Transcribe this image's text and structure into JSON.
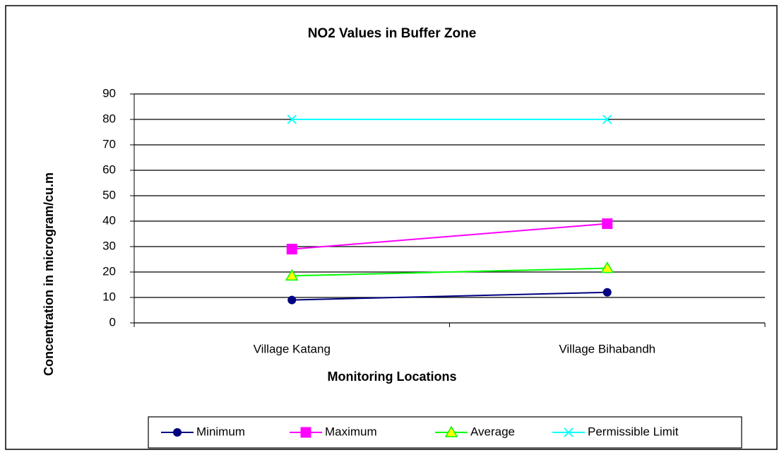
{
  "chart_data": {
    "type": "line",
    "title": "NO2 Values in Buffer Zone",
    "x_label": "Monitoring Locations",
    "y_label": "Concentration in microgram/cu.m",
    "categories": [
      "Village Katang",
      "Village Bihabandh"
    ],
    "series": [
      {
        "name": "Minimum",
        "color": "#000080",
        "marker": "circle",
        "marker_fill": "#000080",
        "values": [
          9,
          12
        ]
      },
      {
        "name": "Maximum",
        "color": "#ff00ff",
        "marker": "square",
        "marker_fill": "#ff00ff",
        "values": [
          29,
          39
        ]
      },
      {
        "name": "Average",
        "color": "#00ff00",
        "marker": "triangle",
        "marker_fill": "#ffff00",
        "values": [
          18.5,
          21.5
        ]
      },
      {
        "name": "Permissible  Limit",
        "color": "#00ffff",
        "marker": "x",
        "marker_fill": "#00ffff",
        "values": [
          80,
          80
        ]
      }
    ],
    "ylim": [
      0,
      90
    ],
    "yticks": [
      0,
      10,
      20,
      30,
      40,
      50,
      60,
      70,
      80,
      90
    ],
    "grid": true,
    "legend": "bottom"
  }
}
